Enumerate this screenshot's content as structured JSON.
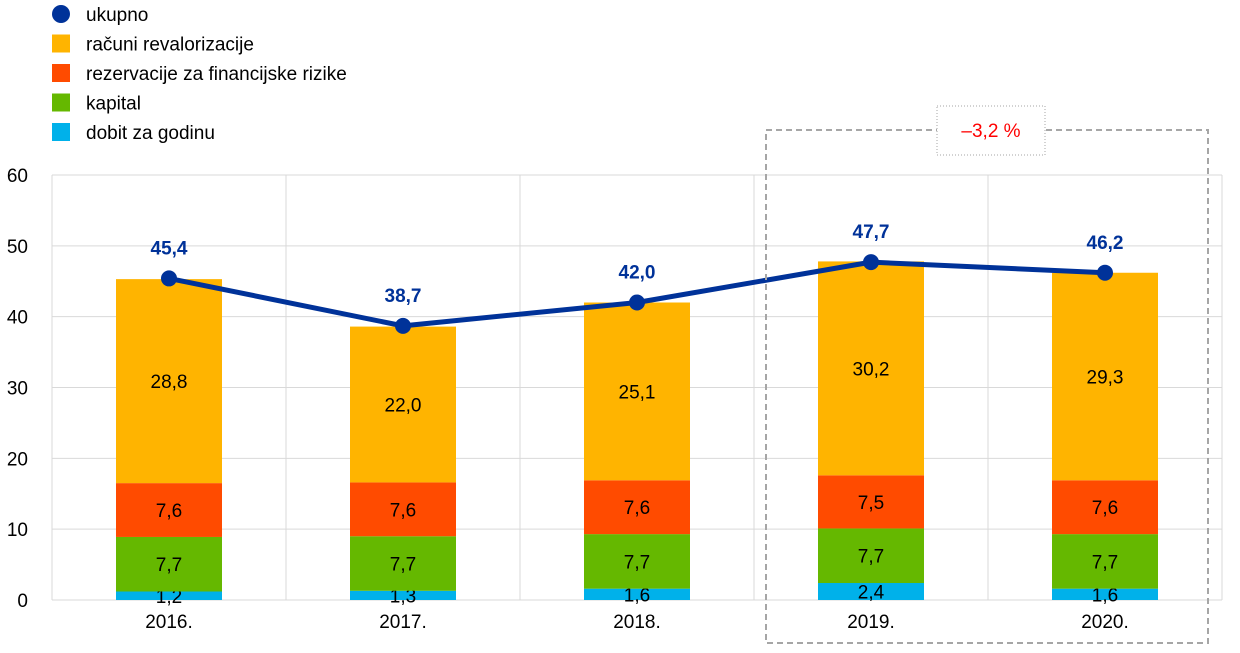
{
  "chart_data": {
    "type": "bar",
    "stacked": true,
    "categories": [
      "2016.",
      "2017.",
      "2018.",
      "2019.",
      "2020."
    ],
    "ylim": [
      0,
      60
    ],
    "yticks": [
      0,
      10,
      20,
      30,
      40,
      50,
      60
    ],
    "grid": true,
    "legend_position": "top-left",
    "series": [
      {
        "name": "dobit za godinu",
        "kind": "bar",
        "color": "#00B1EA",
        "values": [
          1.2,
          1.3,
          1.6,
          2.4,
          1.6
        ],
        "labels": [
          "1,2",
          "1,3",
          "1,6",
          "2,4",
          "1,6"
        ]
      },
      {
        "name": "kapital",
        "kind": "bar",
        "color": "#65B800",
        "values": [
          7.7,
          7.7,
          7.7,
          7.7,
          7.7
        ],
        "labels": [
          "7,7",
          "7,7",
          "7,7",
          "7,7",
          "7,7"
        ]
      },
      {
        "name": "rezervacije za financijske rizike",
        "kind": "bar",
        "color": "#FF4B00",
        "values": [
          7.6,
          7.6,
          7.6,
          7.5,
          7.6
        ],
        "labels": [
          "7,6",
          "7,6",
          "7,6",
          "7,5",
          "7,6"
        ]
      },
      {
        "name": "računi revalorizacije",
        "kind": "bar",
        "color": "#FFB400",
        "values": [
          28.8,
          22.0,
          25.1,
          30.2,
          29.3
        ],
        "labels": [
          "28,8",
          "22,0",
          "25,1",
          "30,2",
          "29,3"
        ]
      },
      {
        "name": "ukupno",
        "kind": "line",
        "color": "#003299",
        "values": [
          45.4,
          38.7,
          42.0,
          47.7,
          46.2
        ],
        "labels": [
          "45,4",
          "38,7",
          "42,0",
          "47,7",
          "46,2"
        ]
      }
    ],
    "legend_order": [
      "ukupno",
      "računi revalorizacije",
      "rezervacije za financijske rizike",
      "kapital",
      "dobit za godinu"
    ],
    "annotation": {
      "text": "–3,2 %",
      "color": "#FF0000",
      "highlight_categories": [
        "2019.",
        "2020."
      ]
    }
  }
}
